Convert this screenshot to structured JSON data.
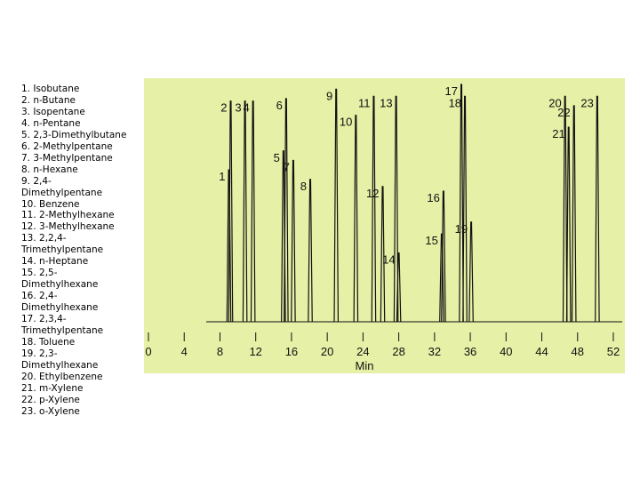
{
  "compound_list": [
    "1. Isobutane",
    "2. n-Butane",
    "3. Isopentane",
    "4. n-Pentane",
    "5. 2,3-Dimethylbutane",
    "6. 2-Methylpentane",
    "7. 3-Methylpentane",
    "8. n-Hexane",
    "9. 2,4-Dimethylpentane",
    "10. Benzene",
    "11. 2-Methylhexane",
    "12. 3-Methylhexane",
    "13. 2,2,4-Trimethylpentane",
    "14. n-Heptane",
    "15. 2,5-Dimethylhexane",
    "16. 2,4-Dimethylhexane",
    "17. 2,3,4-Trimethylpentane",
    "18. Toluene",
    "19. 2,3-Dimethylhexane",
    "20. Ethylbenzene",
    "21. m-Xylene",
    "22. p-Xylene",
    "23. o-Xylene"
  ],
  "chart_data": {
    "type": "chromatogram",
    "xlabel": "Min",
    "peak_labels": [
      "1",
      "2",
      "3",
      "4",
      "5",
      "6",
      "7",
      "8",
      "9",
      "10",
      "11",
      "12",
      "13",
      "14",
      "15",
      "16",
      "17",
      "18",
      "19",
      "20",
      "21",
      "22",
      "23"
    ],
    "x": [
      9.0,
      9.2,
      10.8,
      11.7,
      15.1,
      15.4,
      16.2,
      18.1,
      21.0,
      23.2,
      25.2,
      26.2,
      27.7,
      28.0,
      32.8,
      33.0,
      35.0,
      35.4,
      36.1,
      46.6,
      47.0,
      47.6,
      50.2
    ],
    "values": [
      64,
      93,
      93,
      93,
      72,
      94,
      68,
      60,
      98,
      87,
      95,
      57,
      95,
      29,
      37,
      55,
      100,
      95,
      42,
      95,
      82,
      91,
      95
    ],
    "xlim": [
      0,
      52
    ],
    "xticks": [
      0,
      4,
      8,
      12,
      16,
      20,
      24,
      28,
      32,
      36,
      40,
      44,
      48,
      52
    ],
    "ylim": [
      0,
      100
    ],
    "color": "#111111",
    "background": "#e6f0a6"
  }
}
